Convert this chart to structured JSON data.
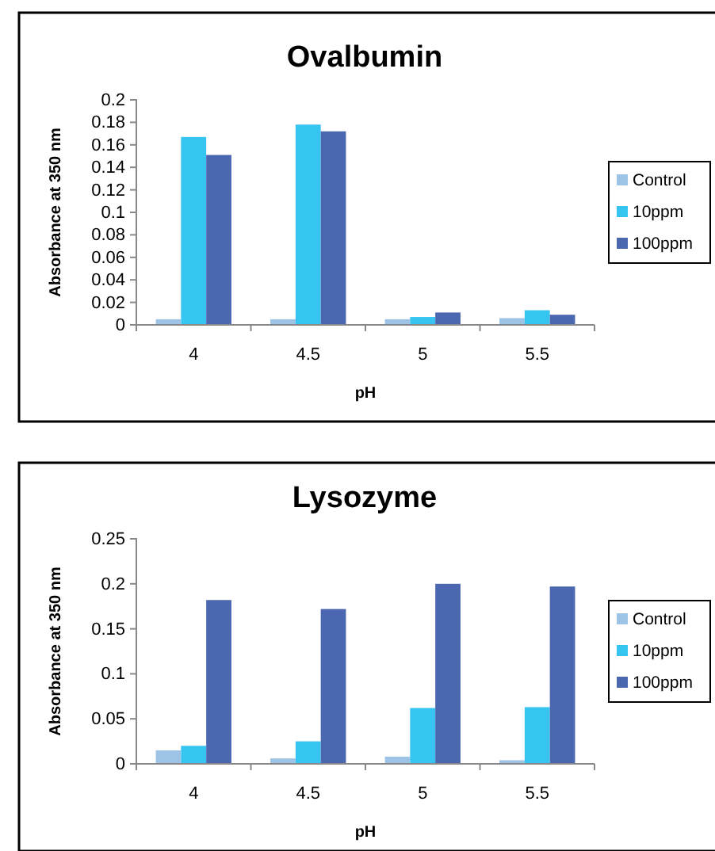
{
  "chart_data": [
    {
      "type": "bar",
      "title": "Ovalbumin",
      "xlabel": "pH",
      "ylabel": "Absorbance at 350 nm",
      "categories": [
        "4",
        "4.5",
        "5",
        "5.5"
      ],
      "series": [
        {
          "name": "Control",
          "color": "#9dc3e6",
          "values": [
            0.005,
            0.005,
            0.005,
            0.006
          ]
        },
        {
          "name": "10ppm",
          "color": "#36c5f0",
          "values": [
            0.167,
            0.178,
            0.007,
            0.013
          ]
        },
        {
          "name": "100ppm",
          "color": "#4a67b0",
          "values": [
            0.151,
            0.172,
            0.011,
            0.009
          ]
        }
      ],
      "ylim": [
        0,
        0.2
      ],
      "yticks": [
        0,
        0.02,
        0.04,
        0.06,
        0.08,
        0.1,
        0.12,
        0.14,
        0.16,
        0.18,
        0.2
      ],
      "legend": "right",
      "grid": false
    },
    {
      "type": "bar",
      "title": "Lysozyme",
      "xlabel": "pH",
      "ylabel": "Absorbance at 350 nm",
      "categories": [
        "4",
        "4.5",
        "5",
        "5.5"
      ],
      "series": [
        {
          "name": "Control",
          "color": "#9dc3e6",
          "values": [
            0.015,
            0.006,
            0.008,
            0.004
          ]
        },
        {
          "name": "10ppm",
          "color": "#36c5f0",
          "values": [
            0.02,
            0.025,
            0.062,
            0.063
          ]
        },
        {
          "name": "100ppm",
          "color": "#4a67b0",
          "values": [
            0.182,
            0.172,
            0.2,
            0.197
          ]
        }
      ],
      "ylim": [
        0,
        0.25
      ],
      "yticks": [
        0,
        0.05,
        0.1,
        0.15,
        0.2,
        0.25
      ],
      "legend": "right",
      "grid": false
    }
  ]
}
